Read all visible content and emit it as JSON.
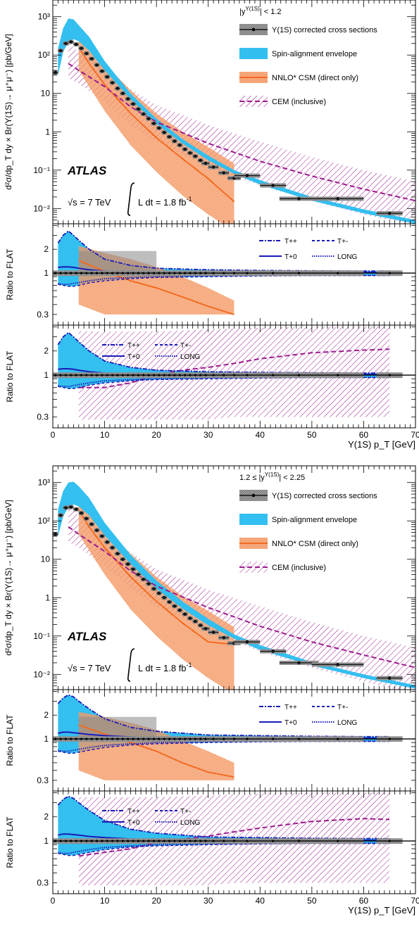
{
  "figure": {
    "atlas_label": "ATLAS",
    "energy_label": "√s = 7 TeV",
    "lumi_label": "L dt = 1.8 fb",
    "lumi_sup": "-1",
    "ylabel_main": "d²σ/dp_T dy × Br(Υ(1S)→ μ⁺μ⁻) [pb/GeV]",
    "ylabel_ratio": "Ratio to FLAT",
    "xlabel": "Υ(1S) p_T [GeV]"
  },
  "legend": {
    "data": "Υ(1S) corrected cross sections",
    "envelope": "Spin-alignment envelope",
    "csm": "NNLO* CSM (direct only)",
    "cem": "CEM (inclusive)",
    "tpp": "T++",
    "tpm": "T+-",
    "t0": "T+0",
    "long": "LONG"
  },
  "colors": {
    "envelope": "#33bfef",
    "csm_band": "#f7a070",
    "csm_line": "#f26b21",
    "cem": "#9b1b8e",
    "data": "#111111",
    "data_syst": "#888888",
    "spin_lines": "#1a1ab8"
  },
  "chart_data": [
    {
      "type": "line",
      "rapidity_label": "|y",
      "rapidity_sup": "Υ(1S)",
      "rapidity_tail": "| < 1.2",
      "xlim": [
        0,
        70
      ],
      "ylim": [
        0.004,
        2500
      ],
      "yscale": "log",
      "x_ticks": [
        "0",
        "10",
        "20",
        "30",
        "40",
        "50",
        "60",
        "70"
      ],
      "y_ticks": [
        "10⁻²",
        "10⁻¹",
        "1",
        "10",
        "10²",
        "10³"
      ],
      "data_points": {
        "x": [
          0.5,
          1.5,
          2.5,
          3.5,
          4.5,
          5.5,
          6.5,
          7.5,
          8.5,
          9.5,
          10.5,
          11.5,
          12.5,
          13.5,
          14.5,
          15.5,
          16.5,
          17.5,
          18.5,
          19.5,
          20.5,
          21.5,
          22.5,
          23.5,
          24.5,
          25.5,
          26.5,
          27.5,
          28.5,
          29.5,
          31,
          33,
          35,
          37.5,
          42.5,
          47.5,
          55,
          65
        ],
        "y": [
          35,
          130,
          200,
          220,
          190,
          150,
          110,
          80,
          55,
          38,
          27,
          19,
          13.5,
          10,
          7.2,
          5.3,
          3.9,
          2.9,
          2.2,
          1.65,
          1.25,
          0.96,
          0.74,
          0.57,
          0.45,
          0.35,
          0.28,
          0.23,
          0.18,
          0.15,
          0.12,
          0.085,
          0.062,
          0.072,
          0.04,
          0.018,
          0.018,
          0.0075
        ]
      },
      "envelope": {
        "x": [
          1,
          2,
          3,
          4,
          5,
          7,
          10,
          15,
          20,
          25,
          30,
          35,
          40,
          50,
          60,
          70
        ],
        "low": [
          30,
          120,
          220,
          260,
          230,
          130,
          40,
          7,
          1.6,
          0.5,
          0.18,
          0.08,
          0.042,
          0.016,
          0.0075,
          0.004
        ],
        "high": [
          150,
          500,
          900,
          850,
          600,
          300,
          70,
          10,
          2.2,
          0.65,
          0.24,
          0.1,
          0.055,
          0.02,
          0.0095,
          0.005
        ]
      },
      "csm": {
        "x": [
          5,
          7,
          10,
          15,
          20,
          25,
          30,
          35
        ],
        "central": [
          160,
          60,
          17,
          3,
          0.7,
          0.2,
          0.06,
          0.015
        ],
        "low": [
          40,
          15,
          3.5,
          0.45,
          0.09,
          0.022,
          0.007,
          0.0025
        ],
        "high": [
          400,
          180,
          60,
          12,
          3,
          1,
          0.4,
          0.15
        ]
      },
      "cem": {
        "x": [
          3,
          5,
          10,
          15,
          20,
          30,
          40,
          50,
          60,
          70
        ],
        "central": [
          60,
          40,
          15,
          4.5,
          1.8,
          0.5,
          0.17,
          0.07,
          0.032,
          0.016
        ],
        "low": [
          25,
          18,
          6,
          1.5,
          0.55,
          0.12,
          0.04,
          0.016,
          0.007,
          0.0035
        ],
        "high": [
          200,
          120,
          45,
          13,
          5,
          1.5,
          0.55,
          0.22,
          0.1,
          0.05
        ]
      },
      "ratio_ylim": [
        0.22,
        4.2
      ],
      "ratio_ticks": [
        "0.3",
        "1",
        "2"
      ],
      "ratio_data": {
        "envelope_x": [
          1,
          2,
          3,
          4,
          5,
          7,
          10,
          15,
          20,
          30,
          40,
          50,
          60,
          65
        ],
        "envelope_high": [
          2.4,
          3.0,
          3.4,
          3.0,
          2.6,
          2.0,
          1.5,
          1.25,
          1.15,
          1.1,
          1.08,
          1.07,
          1.06,
          1.06
        ],
        "envelope_low": [
          0.72,
          0.7,
          0.68,
          0.68,
          0.7,
          0.75,
          0.8,
          0.85,
          0.88,
          0.9,
          0.92,
          0.93,
          0.93,
          0.93
        ],
        "t0": [
          1.18,
          1.2,
          1.2,
          1.18,
          1.15,
          1.1,
          1.06,
          1.04,
          1.03,
          1.02,
          1.02,
          1.02,
          1.02,
          1.02
        ],
        "long": [
          0.74,
          0.72,
          0.72,
          0.74,
          0.76,
          0.8,
          0.85,
          0.88,
          0.9,
          0.92,
          0.93,
          0.94,
          0.94,
          0.94
        ],
        "csm_x": [
          5,
          10,
          15,
          20,
          25,
          30,
          35
        ],
        "csm_central": [
          1.45,
          1.05,
          0.8,
          0.65,
          0.5,
          0.38,
          0.3
        ],
        "csm_low": [
          0.4,
          0.3,
          0.3,
          0.3,
          0.3,
          0.3,
          0.3
        ],
        "csm_high": [
          2.2,
          1.8,
          1.5,
          1.2,
          0.9,
          0.65,
          0.45
        ],
        "cem_x": [
          5,
          10,
          15,
          20,
          25,
          30,
          35,
          40,
          50,
          60,
          65
        ],
        "cem_central": [
          0.7,
          0.7,
          0.8,
          1.0,
          1.15,
          1.25,
          1.4,
          1.6,
          1.9,
          2.05,
          2.1
        ],
        "cem_low": [
          0.28,
          0.28,
          0.28,
          0.28,
          0.28,
          0.28,
          0.3,
          0.3,
          0.3,
          0.3,
          0.3
        ],
        "cem_high": [
          3.5,
          3.5,
          3.5,
          3.5,
          3.6,
          3.7,
          3.8,
          3.9,
          4.0,
          4.0,
          4.0
        ]
      }
    },
    {
      "type": "line",
      "rapidity_label": "1.2 ≤ |y",
      "rapidity_sup": "Υ(1S)",
      "rapidity_tail": "| < 2.25",
      "xlim": [
        0,
        70
      ],
      "ylim": [
        0.004,
        2500
      ],
      "yscale": "log",
      "x_ticks": [
        "0",
        "10",
        "20",
        "30",
        "40",
        "50",
        "60",
        "70"
      ],
      "y_ticks": [
        "10⁻²",
        "10⁻¹",
        "1",
        "10",
        "10²",
        "10³"
      ],
      "data_points": {
        "x": [
          0.5,
          1.5,
          2.5,
          3.5,
          4.5,
          5.5,
          6.5,
          7.5,
          8.5,
          9.5,
          10.5,
          11.5,
          12.5,
          13.5,
          14.5,
          15.5,
          16.5,
          17.5,
          18.5,
          19.5,
          20.5,
          21.5,
          22.5,
          23.5,
          24.5,
          25.5,
          26.5,
          27.5,
          28.5,
          29.5,
          31,
          33,
          35,
          37.5,
          42.5,
          47.5,
          55,
          65
        ],
        "y": [
          45,
          140,
          220,
          230,
          200,
          160,
          115,
          82,
          57,
          40,
          28,
          20,
          14,
          10,
          7.5,
          5.5,
          4.0,
          3.0,
          2.3,
          1.7,
          1.3,
          1.0,
          0.77,
          0.6,
          0.47,
          0.37,
          0.29,
          0.24,
          0.19,
          0.155,
          0.125,
          0.09,
          0.065,
          0.07,
          0.04,
          0.02,
          0.018,
          0.008
        ]
      },
      "envelope": {
        "x": [
          1,
          2,
          3,
          4,
          5,
          7,
          10,
          15,
          20,
          25,
          30,
          35,
          40,
          50,
          60,
          70
        ],
        "low": [
          40,
          130,
          230,
          270,
          240,
          140,
          42,
          7.5,
          1.7,
          0.52,
          0.19,
          0.085,
          0.043,
          0.017,
          0.008,
          0.0042
        ],
        "high": [
          200,
          600,
          1000,
          1050,
          800,
          400,
          90,
          13,
          2.8,
          0.8,
          0.28,
          0.11,
          0.058,
          0.021,
          0.01,
          0.0052
        ]
      },
      "csm": {
        "x": [
          5,
          7,
          10,
          15,
          20,
          25,
          30,
          35
        ],
        "central": [
          190,
          70,
          20,
          3.5,
          0.8,
          0.22,
          0.07,
          0.06
        ],
        "low": [
          45,
          17,
          4,
          0.5,
          0.1,
          0.025,
          0.008,
          0.003
        ],
        "high": [
          450,
          200,
          70,
          14,
          3.5,
          1.1,
          0.45,
          0.17
        ]
      },
      "cem": {
        "x": [
          3,
          5,
          10,
          15,
          20,
          30,
          40,
          50,
          60,
          70
        ],
        "central": [
          70,
          45,
          16,
          5,
          2,
          0.55,
          0.18,
          0.07,
          0.032,
          0.015
        ],
        "low": [
          28,
          20,
          6.5,
          1.7,
          0.6,
          0.13,
          0.04,
          0.015,
          0.0065,
          0.003
        ],
        "high": [
          230,
          140,
          50,
          15,
          5.5,
          1.6,
          0.6,
          0.23,
          0.1,
          0.05
        ]
      },
      "ratio_ylim": [
        0.22,
        4.2
      ],
      "ratio_ticks": [
        "0.3",
        "1",
        "2"
      ],
      "ratio_data": {
        "envelope_x": [
          1,
          2,
          3,
          4,
          5,
          7,
          10,
          15,
          20,
          30,
          40,
          50,
          60,
          65
        ],
        "envelope_high": [
          2.8,
          3.3,
          3.6,
          3.4,
          3.0,
          2.4,
          1.8,
          1.4,
          1.25,
          1.12,
          1.1,
          1.08,
          1.07,
          1.07
        ],
        "envelope_low": [
          0.7,
          0.68,
          0.66,
          0.66,
          0.68,
          0.72,
          0.78,
          0.84,
          0.87,
          0.9,
          0.92,
          0.93,
          0.93,
          0.93
        ],
        "t0": [
          1.18,
          1.22,
          1.22,
          1.2,
          1.18,
          1.14,
          1.1,
          1.06,
          1.04,
          1.03,
          1.02,
          1.02,
          1.02,
          1.02
        ],
        "long": [
          0.72,
          0.7,
          0.7,
          0.72,
          0.74,
          0.78,
          0.83,
          0.87,
          0.9,
          0.92,
          0.93,
          0.94,
          0.94,
          0.94
        ],
        "csm_x": [
          5,
          10,
          15,
          20,
          25,
          30,
          35
        ],
        "csm_central": [
          1.5,
          1.15,
          0.9,
          0.7,
          0.5,
          0.38,
          0.33
        ],
        "csm_low": [
          0.4,
          0.3,
          0.3,
          0.3,
          0.3,
          0.3,
          0.3
        ],
        "csm_high": [
          2.2,
          1.9,
          1.6,
          1.3,
          0.95,
          0.7,
          0.5
        ],
        "cem_x": [
          5,
          10,
          15,
          20,
          25,
          30,
          35,
          40,
          50,
          60,
          65
        ],
        "cem_central": [
          0.65,
          0.72,
          0.8,
          0.95,
          1.05,
          1.15,
          1.3,
          1.45,
          1.75,
          1.9,
          1.85
        ],
        "cem_low": [
          0.28,
          0.28,
          0.28,
          0.28,
          0.28,
          0.28,
          0.3,
          0.3,
          0.3,
          0.3,
          0.3
        ],
        "cem_high": [
          3.5,
          3.5,
          3.5,
          3.5,
          3.6,
          3.7,
          3.8,
          3.9,
          4.0,
          4.0,
          4.0
        ]
      }
    }
  ]
}
